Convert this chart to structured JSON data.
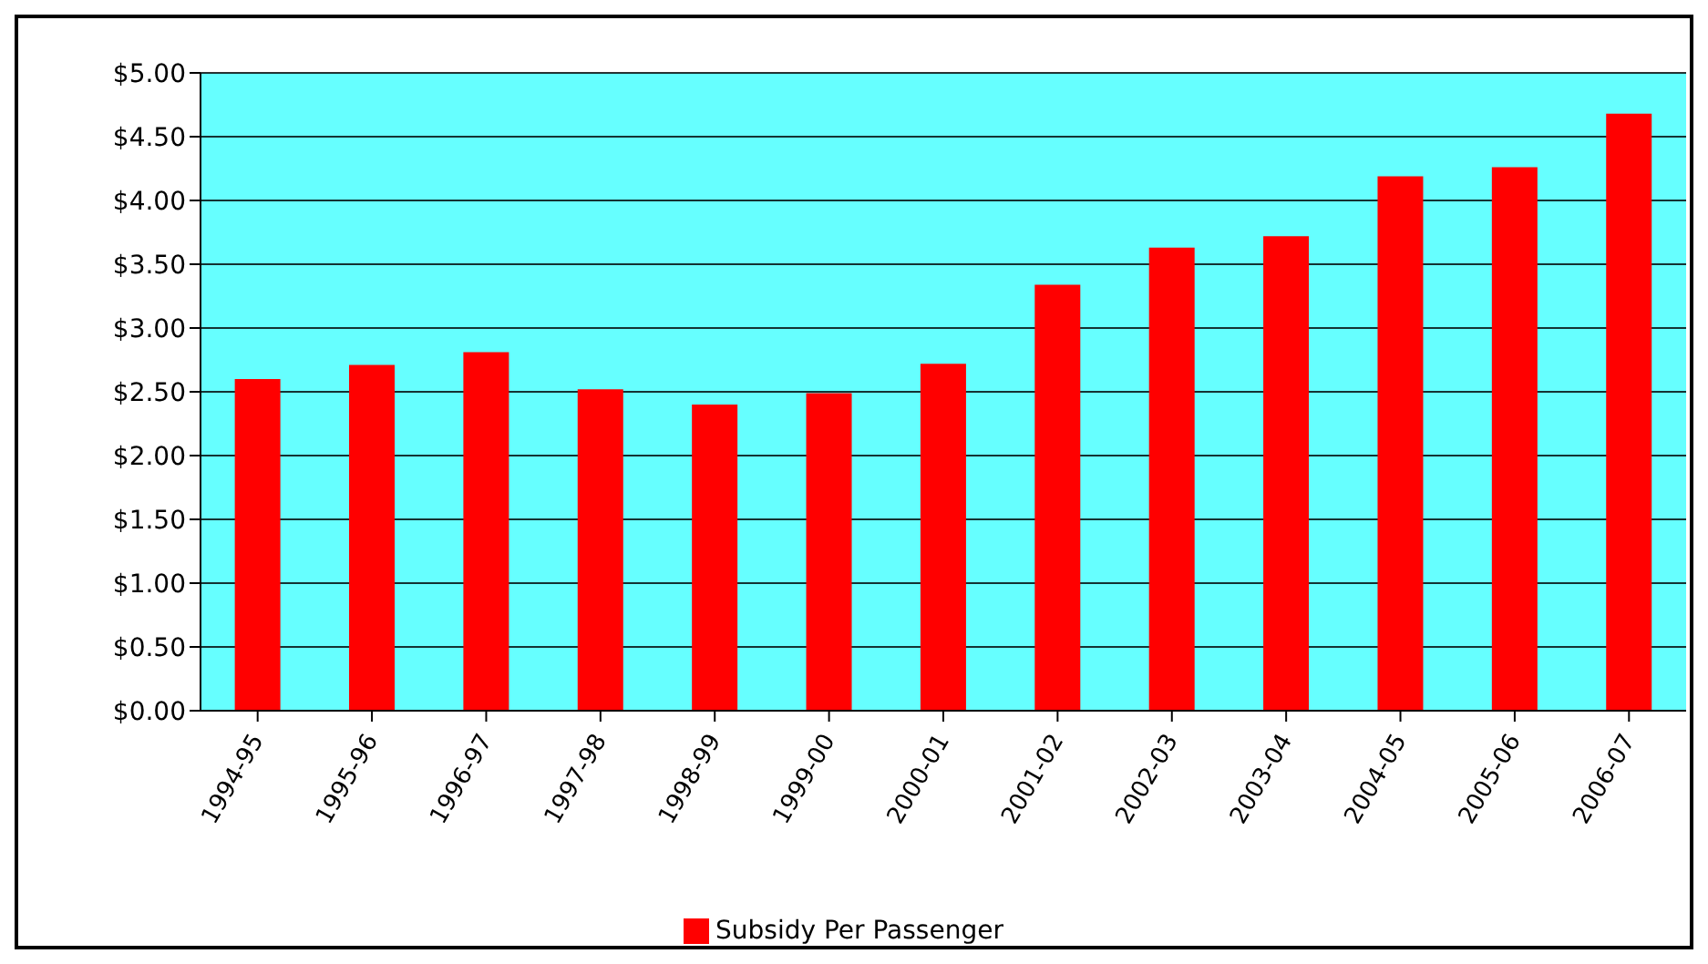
{
  "chart_data": {
    "type": "bar",
    "categories": [
      "1994-95",
      "1995-96",
      "1996-97",
      "1997-98",
      "1998-99",
      "1999-00",
      "2000-01",
      "2001-02",
      "2002-03",
      "2003-04",
      "2004-05",
      "2005-06",
      "2006-07"
    ],
    "series": [
      {
        "name": "Subsidy Per Passenger",
        "color": "#ff0000",
        "values": [
          2.6,
          2.71,
          2.81,
          2.52,
          2.4,
          2.49,
          2.72,
          3.34,
          3.63,
          3.72,
          4.19,
          4.26,
          4.68
        ]
      }
    ],
    "ylim": [
      0,
      5
    ],
    "yticks": [
      {
        "value": 0,
        "label": "$0.00"
      },
      {
        "value": 0.5,
        "label": "$0.50"
      },
      {
        "value": 1,
        "label": "$1.00"
      },
      {
        "value": 1.5,
        "label": "$1.50"
      },
      {
        "value": 2,
        "label": "$2.00"
      },
      {
        "value": 2.5,
        "label": "$2.50"
      },
      {
        "value": 3,
        "label": "$3.00"
      },
      {
        "value": 3.5,
        "label": "$3.50"
      },
      {
        "value": 4,
        "label": "$4.00"
      },
      {
        "value": 4.5,
        "label": "$4.50"
      },
      {
        "value": 5,
        "label": "$5.00"
      }
    ],
    "grid": "y",
    "legend": "bottom"
  }
}
